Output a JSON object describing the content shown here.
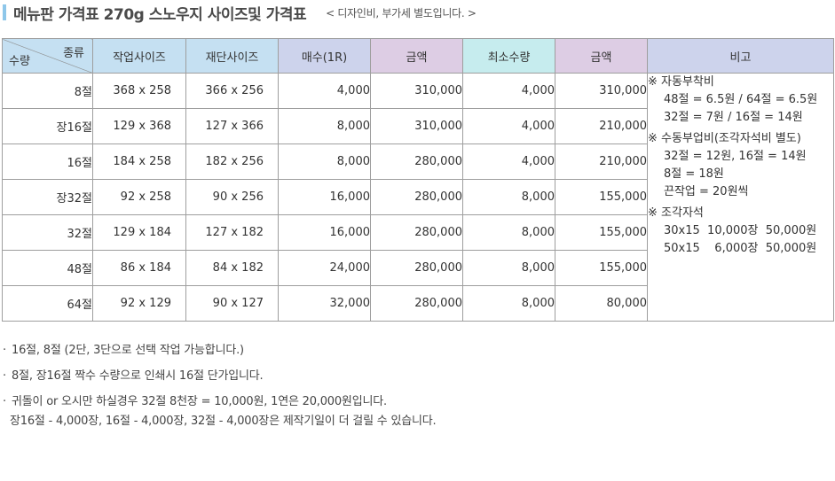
{
  "header": {
    "title": "메뉴판 가격표 270g 스노우지 사이즈및 가격표",
    "note": "< 디자인비, 부가세 별도입니다. >"
  },
  "table": {
    "corner": {
      "top": "종류",
      "bottom": "수량"
    },
    "columns": [
      "작업사이즈",
      "재단사이즈",
      "매수(1R)",
      "금액",
      "최소수량",
      "금액",
      "비고"
    ],
    "rows": [
      {
        "kind": "8절",
        "work": "368 x 258",
        "cut": "366 x 256",
        "sheets": "4,000",
        "price": "310,000",
        "min": "4,000",
        "min_price": "310,000"
      },
      {
        "kind": "장16절",
        "work": "129 x 368",
        "cut": "127 x 366",
        "sheets": "8,000",
        "price": "310,000",
        "min": "4,000",
        "min_price": "210,000"
      },
      {
        "kind": "16절",
        "work": "184 x 258",
        "cut": "182 x 256",
        "sheets": "8,000",
        "price": "280,000",
        "min": "4,000",
        "min_price": "210,000"
      },
      {
        "kind": "장32절",
        "work": "92 x 258",
        "cut": "90 x 256",
        "sheets": "16,000",
        "price": "280,000",
        "min": "8,000",
        "min_price": "155,000"
      },
      {
        "kind": "32절",
        "work": "129 x 184",
        "cut": "127 x 182",
        "sheets": "16,000",
        "price": "280,000",
        "min": "8,000",
        "min_price": "155,000"
      },
      {
        "kind": "48절",
        "work": "86 x 184",
        "cut": "84 x 182",
        "sheets": "24,000",
        "price": "280,000",
        "min": "8,000",
        "min_price": "155,000"
      },
      {
        "kind": "64절",
        "work": "92 x 129",
        "cut": "90 x 127",
        "sheets": "32,000",
        "price": "280,000",
        "min": "8,000",
        "min_price": "80,000"
      }
    ],
    "remarks": {
      "g1_title": "※ 자동부착비",
      "g1_l1": "48절 = 6.5원 / 64절 = 6.5원",
      "g1_l2": "32절 = 7원 / 16절 = 14원",
      "g2_title": "※ 수동부업비(조각자석비 별도)",
      "g2_l1": "32절 = 12원, 16절 = 14원",
      "g2_l2": "8절 = 18원",
      "g2_l3": "끈작업 = 20원씩",
      "g3_title": "※ 조각자석",
      "g3_l1": "30x15  10,000장  50,000원",
      "g3_l2": "50x15    6,000장  50,000원"
    }
  },
  "footnotes": {
    "n1": "16절, 8절 (2단, 3단으로 선택 작업 가능합니다.)",
    "n2": "8절, 장16절 짝수 수량으로 인쇄시 16절 단가입니다.",
    "n3": "귀돌이 or 오시만 하실경우 32절  8천장  = 10,000원, 1연은 20,000원입니다.",
    "n3_cont": "장16절 - 4,000장, 16절 - 4,000장, 32절 - 4,000장은 제작기일이 더 걸릴 수 있습니다."
  },
  "colors": {
    "size_header": "#c5e0f2",
    "qty_header": "#cdd3ec",
    "amount_header": "#ddcde4",
    "min_header": "#c6ecee",
    "title_marker": "#8ec7ea"
  }
}
